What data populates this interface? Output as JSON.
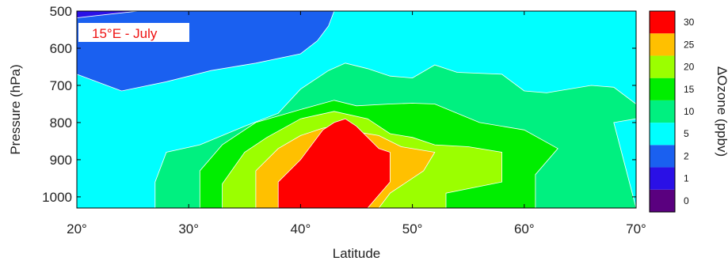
{
  "chart_data": {
    "type": "heatmap",
    "subtype": "filled-contour",
    "title": "",
    "xlabel": "Latitude",
    "ylabel": "Pressure (hPa)",
    "xlim": [
      20,
      70
    ],
    "ylim": [
      500,
      1030
    ],
    "y_inverted": true,
    "x_ticks": [
      {
        "value": 20,
        "label": "20°"
      },
      {
        "value": 30,
        "label": "30°"
      },
      {
        "value": 40,
        "label": "40°"
      },
      {
        "value": 50,
        "label": "50°"
      },
      {
        "value": 60,
        "label": "60°"
      },
      {
        "value": 70,
        "label": "70°"
      }
    ],
    "y_ticks": [
      {
        "value": 500,
        "label": "500"
      },
      {
        "value": 600,
        "label": "600"
      },
      {
        "value": 700,
        "label": "700"
      },
      {
        "value": 800,
        "label": "800"
      },
      {
        "value": 900,
        "label": "900"
      },
      {
        "value": 1000,
        "label": "1000"
      }
    ],
    "annotation": "15°E - July",
    "colorbar": {
      "label": "ΔOzone (ppbv)",
      "levels": [
        {
          "label": "0",
          "color": "#5a007f"
        },
        {
          "label": "1",
          "color": "#2a10e6"
        },
        {
          "label": "2",
          "color": "#1a60f0"
        },
        {
          "label": "5",
          "color": "#00ffff"
        },
        {
          "label": "10",
          "color": "#00f080"
        },
        {
          "label": "15",
          "color": "#00ee00"
        },
        {
          "label": "20",
          "color": "#9bff00"
        },
        {
          "label": "25",
          "color": "#ffc000"
        },
        {
          "label": "30",
          "color": "#ff0000"
        }
      ]
    },
    "regions": [
      {
        "level": "5-10",
        "color": "#00ffff",
        "polygon": [
          [
            20,
            500
          ],
          [
            70,
            500
          ],
          [
            70,
            1030
          ],
          [
            20,
            1030
          ]
        ]
      },
      {
        "level": "2-5",
        "color": "#1a60f0",
        "polygon": [
          [
            20,
            500
          ],
          [
            43,
            500
          ],
          [
            42.5,
            540
          ],
          [
            41.5,
            580
          ],
          [
            40,
            615
          ],
          [
            36,
            640
          ],
          [
            32,
            660
          ],
          [
            28,
            690
          ],
          [
            24,
            715
          ],
          [
            20,
            670
          ]
        ]
      },
      {
        "level": "1-2",
        "color": "#2a10e6",
        "polygon": [
          [
            20,
            500
          ],
          [
            25.5,
            500
          ],
          [
            23,
            508
          ],
          [
            20,
            518
          ]
        ]
      },
      {
        "level": "10-15",
        "color": "#00f080",
        "polygon": [
          [
            27,
            1030
          ],
          [
            27,
            960
          ],
          [
            28,
            880
          ],
          [
            31,
            860
          ],
          [
            35,
            810
          ],
          [
            38,
            775
          ],
          [
            40,
            710
          ],
          [
            42.5,
            660
          ],
          [
            44,
            640
          ],
          [
            46,
            655
          ],
          [
            48,
            675
          ],
          [
            50,
            680
          ],
          [
            52,
            645
          ],
          [
            54,
            665
          ],
          [
            58,
            670
          ],
          [
            60,
            715
          ],
          [
            62,
            720
          ],
          [
            66,
            700
          ],
          [
            68,
            705
          ],
          [
            70,
            750
          ],
          [
            70,
            790
          ],
          [
            68,
            800
          ],
          [
            70,
            1030
          ]
        ]
      },
      {
        "level": "15-20",
        "color": "#00ee00",
        "polygon": [
          [
            31,
            1030
          ],
          [
            31,
            930
          ],
          [
            33,
            860
          ],
          [
            36,
            800
          ],
          [
            40,
            765
          ],
          [
            43,
            740
          ],
          [
            45,
            755
          ],
          [
            48,
            750
          ],
          [
            50,
            748
          ],
          [
            52,
            750
          ],
          [
            56,
            800
          ],
          [
            60,
            820
          ],
          [
            63,
            870
          ],
          [
            61,
            940
          ],
          [
            61,
            1030
          ]
        ]
      },
      {
        "level": "20-25",
        "color": "#9bff00",
        "polygon": [
          [
            33,
            1030
          ],
          [
            33,
            965
          ],
          [
            35,
            880
          ],
          [
            37,
            840
          ],
          [
            40,
            790
          ],
          [
            43,
            770
          ],
          [
            46,
            790
          ],
          [
            48,
            830
          ],
          [
            50,
            840
          ],
          [
            52,
            860
          ],
          [
            55,
            865
          ],
          [
            58,
            880
          ],
          [
            58,
            960
          ],
          [
            53,
            990
          ],
          [
            53,
            1030
          ]
        ]
      },
      {
        "level": "25-30",
        "color": "#ffc000",
        "polygon": [
          [
            36,
            1030
          ],
          [
            36,
            930
          ],
          [
            38,
            870
          ],
          [
            40,
            835
          ],
          [
            42,
            815
          ],
          [
            43,
            810
          ],
          [
            45,
            825
          ],
          [
            47,
            835
          ],
          [
            49,
            865
          ],
          [
            52,
            880
          ],
          [
            51,
            930
          ],
          [
            48,
            990
          ],
          [
            47,
            1030
          ]
        ]
      },
      {
        "level": ">30",
        "color": "#ff0000",
        "polygon": [
          [
            38,
            1030
          ],
          [
            38,
            960
          ],
          [
            40,
            900
          ],
          [
            42,
            820
          ],
          [
            43,
            800
          ],
          [
            44,
            790
          ],
          [
            45,
            810
          ],
          [
            47,
            870
          ],
          [
            48,
            880
          ],
          [
            48,
            960
          ],
          [
            46,
            1030
          ]
        ]
      }
    ]
  }
}
